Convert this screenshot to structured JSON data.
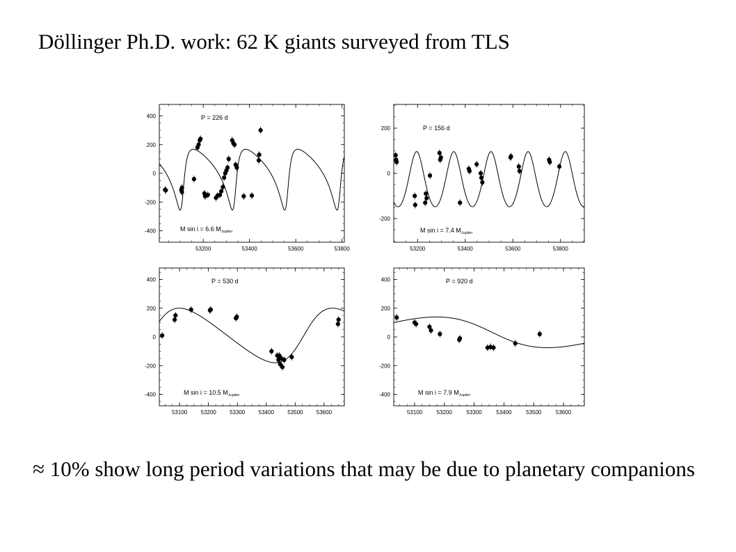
{
  "slide": {
    "title": "Döllinger Ph.D. work: 62 K giants surveyed from TLS",
    "caption": "≈ 10% show long period variations that may be due to planetary companions"
  },
  "chart_data": [
    {
      "type": "scatter",
      "title": "",
      "period_label": "P = 226 d",
      "mass_label": {
        "prefix": "M sin i = 6.6 M",
        "subscript": "Jupiter"
      },
      "xlabel": "",
      "ylabel": "",
      "xlim": [
        53010,
        53810
      ],
      "ylim": [
        -480,
        480
      ],
      "xticks": [
        53200,
        53400,
        53600,
        53800
      ],
      "yticks": [
        -400,
        -200,
        0,
        200,
        400
      ],
      "fit": {
        "period": 226,
        "amplitude": 212,
        "offset": 24,
        "eccentricity": 0.5,
        "omega_deg": 230,
        "phase": 0.0
      },
      "points": [
        {
          "x": 53035,
          "y": -115
        },
        {
          "x": 53038,
          "y": -118
        },
        {
          "x": 53105,
          "y": -115
        },
        {
          "x": 53108,
          "y": -100
        },
        {
          "x": 53108,
          "y": -130
        },
        {
          "x": 53160,
          "y": -40
        },
        {
          "x": 53175,
          "y": 180
        },
        {
          "x": 53180,
          "y": 200
        },
        {
          "x": 53185,
          "y": 230
        },
        {
          "x": 53188,
          "y": 240
        },
        {
          "x": 53205,
          "y": -140
        },
        {
          "x": 53208,
          "y": -160
        },
        {
          "x": 53220,
          "y": -150
        },
        {
          "x": 53255,
          "y": -170
        },
        {
          "x": 53262,
          "y": -155
        },
        {
          "x": 53272,
          "y": -150
        },
        {
          "x": 53278,
          "y": -125
        },
        {
          "x": 53285,
          "y": -95
        },
        {
          "x": 53290,
          "y": -30
        },
        {
          "x": 53295,
          "y": 0
        },
        {
          "x": 53300,
          "y": 20
        },
        {
          "x": 53305,
          "y": 40
        },
        {
          "x": 53310,
          "y": 100
        },
        {
          "x": 53325,
          "y": 230
        },
        {
          "x": 53330,
          "y": 210
        },
        {
          "x": 53335,
          "y": 200
        },
        {
          "x": 53340,
          "y": 60
        },
        {
          "x": 53345,
          "y": 40
        },
        {
          "x": 53375,
          "y": -160
        },
        {
          "x": 53410,
          "y": -155
        },
        {
          "x": 53440,
          "y": 90
        },
        {
          "x": 53442,
          "y": 130
        },
        {
          "x": 53448,
          "y": 300
        }
      ]
    },
    {
      "type": "scatter",
      "title": "",
      "period_label": "P = 156 d",
      "mass_label": {
        "prefix": "M sin i = 7.4 M",
        "subscript": "Jupiter"
      },
      "xlabel": "",
      "ylabel": "",
      "xlim": [
        53100,
        53900
      ],
      "ylim": [
        -305,
        305
      ],
      "xticks": [
        53200,
        53400,
        53600,
        53800
      ],
      "yticks": [
        -200,
        0,
        200
      ],
      "fit": {
        "period": 156,
        "amplitude": 122,
        "offset": -38,
        "eccentricity": 0.1,
        "omega_deg": 0,
        "phase": 0.0
      },
      "points": [
        {
          "x": 53108,
          "y": 80
        },
        {
          "x": 53110,
          "y": 60
        },
        {
          "x": 53112,
          "y": 50
        },
        {
          "x": 53188,
          "y": -100
        },
        {
          "x": 53190,
          "y": -140
        },
        {
          "x": 53232,
          "y": -130
        },
        {
          "x": 53235,
          "y": -90
        },
        {
          "x": 53238,
          "y": -110
        },
        {
          "x": 53252,
          "y": -10
        },
        {
          "x": 53292,
          "y": 90
        },
        {
          "x": 53295,
          "y": 60
        },
        {
          "x": 53298,
          "y": 70
        },
        {
          "x": 53378,
          "y": -130
        },
        {
          "x": 53415,
          "y": 20
        },
        {
          "x": 53418,
          "y": 10
        },
        {
          "x": 53448,
          "y": 40
        },
        {
          "x": 53465,
          "y": 0
        },
        {
          "x": 53468,
          "y": -20
        },
        {
          "x": 53472,
          "y": -40
        },
        {
          "x": 53590,
          "y": 70
        },
        {
          "x": 53592,
          "y": 75
        },
        {
          "x": 53625,
          "y": 30
        },
        {
          "x": 53628,
          "y": 10
        },
        {
          "x": 53752,
          "y": 60
        },
        {
          "x": 53755,
          "y": 50
        },
        {
          "x": 53795,
          "y": 30
        }
      ]
    },
    {
      "type": "scatter",
      "title": "",
      "period_label": "P = 530 d",
      "mass_label": {
        "prefix": "M sin i = 10.5 M",
        "subscript": "Jupiter"
      },
      "xlabel": "",
      "ylabel": "",
      "xlim": [
        53030,
        53670
      ],
      "ylim": [
        -480,
        480
      ],
      "xticks": [
        53100,
        53200,
        53300,
        53400,
        53500,
        53600
      ],
      "yticks": [
        -400,
        -200,
        0,
        200,
        400
      ],
      "fit": {
        "period": 530,
        "amplitude": 190,
        "offset": 10,
        "eccentricity": 0.2,
        "omega_deg": 270,
        "phase": 0.0
      },
      "points": [
        {
          "x": 53040,
          "y": 10
        },
        {
          "x": 53083,
          "y": 120
        },
        {
          "x": 53086,
          "y": 150
        },
        {
          "x": 53140,
          "y": 190
        },
        {
          "x": 53205,
          "y": 185
        },
        {
          "x": 53208,
          "y": 190
        },
        {
          "x": 53295,
          "y": 130
        },
        {
          "x": 53298,
          "y": 140
        },
        {
          "x": 53418,
          "y": -100
        },
        {
          "x": 53438,
          "y": -130
        },
        {
          "x": 53442,
          "y": -160
        },
        {
          "x": 53445,
          "y": -130
        },
        {
          "x": 53448,
          "y": -190
        },
        {
          "x": 53452,
          "y": -150
        },
        {
          "x": 53456,
          "y": -210
        },
        {
          "x": 53462,
          "y": -160
        },
        {
          "x": 53488,
          "y": -140
        },
        {
          "x": 53648,
          "y": 90
        },
        {
          "x": 53650,
          "y": 120
        }
      ]
    },
    {
      "type": "scatter",
      "title": "",
      "period_label": "P = 920 d",
      "mass_label": {
        "prefix": "M sin i = 7.9 M",
        "subscript": "Jupiter"
      },
      "xlabel": "",
      "ylabel": "",
      "xlim": [
        53030,
        53670
      ],
      "ylim": [
        -480,
        480
      ],
      "xticks": [
        53100,
        53200,
        53300,
        53400,
        53500,
        53600
      ],
      "yticks": [
        -400,
        -200,
        0,
        200,
        400
      ],
      "fit": {
        "period": 920,
        "amplitude": 107,
        "offset": 32,
        "eccentricity": 0.15,
        "omega_deg": 90,
        "phase": 0.0
      },
      "points": [
        {
          "x": 53040,
          "y": 135
        },
        {
          "x": 53100,
          "y": 100
        },
        {
          "x": 53105,
          "y": 90
        },
        {
          "x": 53150,
          "y": 70
        },
        {
          "x": 53155,
          "y": 45
        },
        {
          "x": 53185,
          "y": 20
        },
        {
          "x": 53250,
          "y": -20
        },
        {
          "x": 53252,
          "y": -10
        },
        {
          "x": 53345,
          "y": -75
        },
        {
          "x": 53355,
          "y": -70
        },
        {
          "x": 53365,
          "y": -75
        },
        {
          "x": 53438,
          "y": -45
        },
        {
          "x": 53520,
          "y": 20
        }
      ]
    }
  ]
}
